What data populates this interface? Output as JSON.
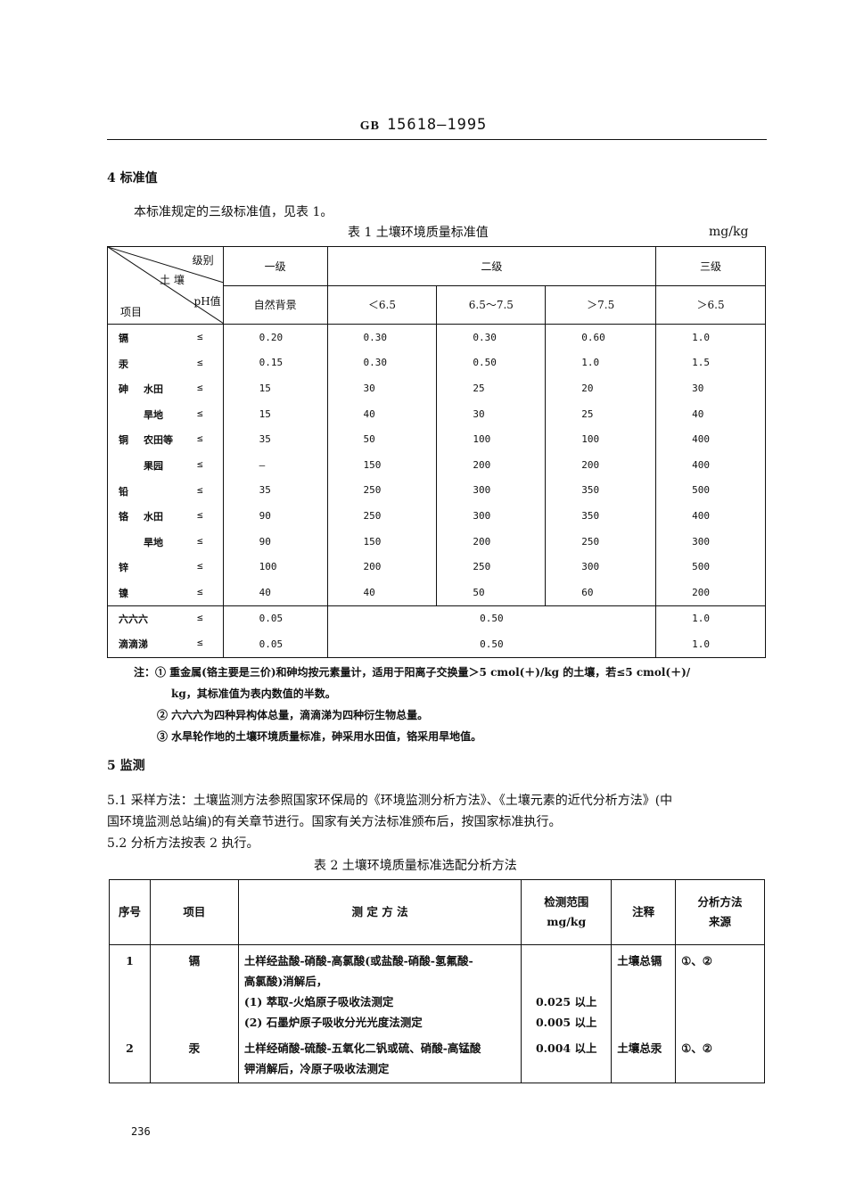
{
  "header": {
    "prefix": "GB",
    "code": "15618—1995"
  },
  "section4": {
    "title": "4  标准值",
    "intro": "本标准规定的三级标准值，见表 1。"
  },
  "table1": {
    "caption": "表 1   土壤环境质量标准值",
    "unit": "mg/kg",
    "corner": {
      "level": "级别",
      "soil": "土 壤",
      "ph": "pH值",
      "item": "项目"
    },
    "levels": [
      "一级",
      "二级",
      "三级"
    ],
    "ph_cols": [
      "自然背景",
      "＜6.5",
      "6.5～7.5",
      "＞7.5",
      "＞6.5"
    ],
    "rows": [
      {
        "item": "镉",
        "sub": "",
        "op": "≤",
        "values": [
          "0.20",
          "0.30",
          "0.30",
          "0.60",
          "1.0"
        ]
      },
      {
        "item": "汞",
        "sub": "",
        "op": "≤",
        "values": [
          "0.15",
          "0.30",
          "0.50",
          "1.0",
          "1.5"
        ]
      },
      {
        "item": "砷",
        "sub": "水田",
        "op": "≤",
        "values": [
          "15",
          "30",
          "25",
          "20",
          "30"
        ]
      },
      {
        "item": "",
        "sub": "旱地",
        "op": "≤",
        "values": [
          "15",
          "40",
          "30",
          "25",
          "40"
        ]
      },
      {
        "item": "铜",
        "sub": "农田等",
        "op": "≤",
        "values": [
          "35",
          "50",
          "100",
          "100",
          "400"
        ]
      },
      {
        "item": "",
        "sub": "果园",
        "op": "≤",
        "values": [
          "—",
          "150",
          "200",
          "200",
          "400"
        ]
      },
      {
        "item": "铅",
        "sub": "",
        "op": "≤",
        "values": [
          "35",
          "250",
          "300",
          "350",
          "500"
        ]
      },
      {
        "item": "铬",
        "sub": "水田",
        "op": "≤",
        "values": [
          "90",
          "250",
          "300",
          "350",
          "400"
        ]
      },
      {
        "item": "",
        "sub": "旱地",
        "op": "≤",
        "values": [
          "90",
          "150",
          "200",
          "250",
          "300"
        ]
      },
      {
        "item": "锌",
        "sub": "",
        "op": "≤",
        "values": [
          "100",
          "200",
          "250",
          "300",
          "500"
        ]
      },
      {
        "item": "镍",
        "sub": "",
        "op": "≤",
        "values": [
          "40",
          "40",
          "50",
          "60",
          "200"
        ]
      }
    ],
    "org_rows": [
      {
        "item": "六六六",
        "op": "≤",
        "l1": "0.05",
        "l2": "0.50",
        "l3": "1.0"
      },
      {
        "item": "滴滴涕",
        "op": "≤",
        "l1": "0.05",
        "l2": "0.50",
        "l3": "1.0"
      }
    ],
    "notes": [
      "注：① 重金属(铬主要是三价)和砷均按元素量计，适用于阳离子交换量＞5 cmol(＋)/kg 的土壤，若≤5 cmol(＋)/",
      "kg，其标准值为表内数值的半数。",
      "② 六六六为四种异构体总量，滴滴涕为四种衍生物总量。",
      "③ 水旱轮作地的土壤环境质量标准，砷采用水田值，铬采用旱地值。"
    ]
  },
  "section5": {
    "title": "5  监测",
    "p1a": "5.1  采样方法：土壤监测方法参照国家环保局的《环境监测分析方法》、《土壤元素的近代分析方法》(中",
    "p1b": "国环境监测总站编)的有关章节进行。国家有关方法标准颁布后，按国家标准执行。",
    "p2": "5.2  分析方法按表 2 执行。"
  },
  "table2": {
    "caption": "表 2   土壤环境质量标准选配分析方法",
    "headers": [
      "序号",
      "项目",
      "测  定  方  法",
      "检测范围\nmg/kg",
      "注释",
      "分析方法\n来源"
    ],
    "rows": [
      {
        "no": "1",
        "item": "镉",
        "method": [
          "土样经盐酸-硝酸-高氯酸(或盐酸-硝酸-氢氟酸-",
          "高氯酸)消解后，",
          "(1) 萃取-火焰原子吸收法测定",
          "(2) 石墨炉原子吸收分光光度法测定"
        ],
        "range": [
          "",
          "",
          "0.025 以上",
          "0.005 以上"
        ],
        "note": "土壤总镉",
        "source": "①、②"
      },
      {
        "no": "2",
        "item": "汞",
        "method": [
          "土样经硝酸-硫酸-五氧化二钒或硫、硝酸-高锰酸",
          "钾消解后，冷原子吸收法测定"
        ],
        "range": [
          "0.004 以上"
        ],
        "note": "土壤总汞",
        "source": "①、②"
      }
    ]
  },
  "page_number": "236"
}
